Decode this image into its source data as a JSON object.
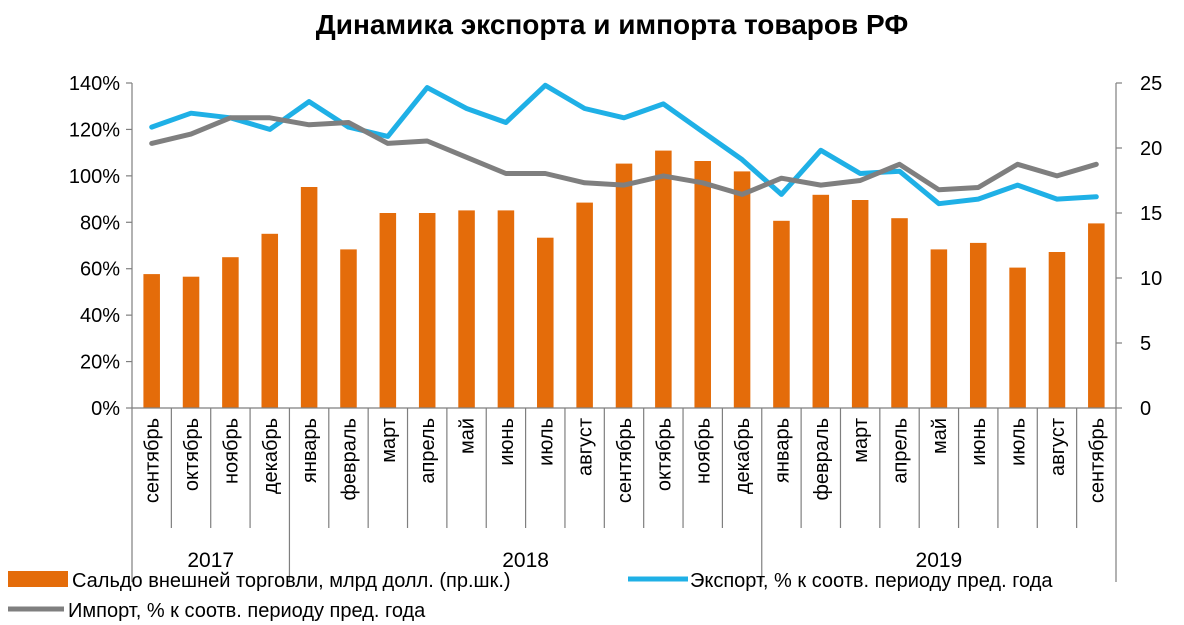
{
  "chart_data": {
    "type": "bar+line",
    "title": "Динамика экспорта и импорта товаров РФ",
    "categories": [
      "сентябрь",
      "октябрь",
      "ноябрь",
      "декабрь",
      "январь",
      "февраль",
      "март",
      "апрель",
      "май",
      "июнь",
      "июль",
      "август",
      "сентябрь",
      "октябрь",
      "ноябрь",
      "декабрь",
      "январь",
      "февраль",
      "март",
      "апрель",
      "май",
      "июнь",
      "июль",
      "август",
      "сентябрь"
    ],
    "years": [
      {
        "label": "2017",
        "start": 0,
        "end": 3
      },
      {
        "label": "2018",
        "start": 4,
        "end": 15
      },
      {
        "label": "2019",
        "start": 16,
        "end": 24
      }
    ],
    "left_axis": {
      "min": 0,
      "max": 140,
      "ticks": [
        "0%",
        "20%",
        "40%",
        "60%",
        "80%",
        "100%",
        "120%",
        "140%"
      ],
      "tick_values": [
        0,
        20,
        40,
        60,
        80,
        100,
        120,
        140
      ]
    },
    "right_axis": {
      "min": 0,
      "max": 25,
      "ticks": [
        "0",
        "5",
        "10",
        "15",
        "20",
        "25"
      ],
      "tick_values": [
        0,
        5,
        10,
        15,
        20,
        25
      ]
    },
    "series": [
      {
        "name": "Сальдо внешней торговли, млрд долл. (пр.шк.)",
        "type": "bar",
        "axis": "right",
        "color": "#E46C0A",
        "values": [
          10.3,
          10.1,
          11.6,
          13.4,
          17.0,
          12.2,
          15.0,
          15.0,
          15.2,
          15.2,
          13.1,
          15.8,
          18.8,
          19.8,
          19.0,
          18.2,
          14.4,
          16.4,
          16.0,
          14.6,
          12.2,
          12.7,
          10.8,
          12.0,
          14.2
        ]
      },
      {
        "name": "Экспорт, % к соотв. периоду пред. года",
        "type": "line",
        "axis": "left",
        "color": "#1FB0E6",
        "values": [
          121,
          127,
          125,
          120,
          132,
          121,
          117,
          138,
          129,
          123,
          139,
          129,
          125,
          131,
          119,
          107,
          92,
          111,
          101,
          102,
          88,
          90,
          96,
          90,
          91
        ]
      },
      {
        "name": "Импорт, % к соотв. периоду пред. года",
        "type": "line",
        "axis": "left",
        "color": "#7F7F7F",
        "values": [
          114,
          118,
          125,
          125,
          122,
          123,
          114,
          115,
          108,
          101,
          101,
          97,
          96,
          100,
          97,
          92,
          99,
          96,
          98,
          105,
          94,
          95,
          105,
          100,
          105
        ]
      }
    ]
  }
}
